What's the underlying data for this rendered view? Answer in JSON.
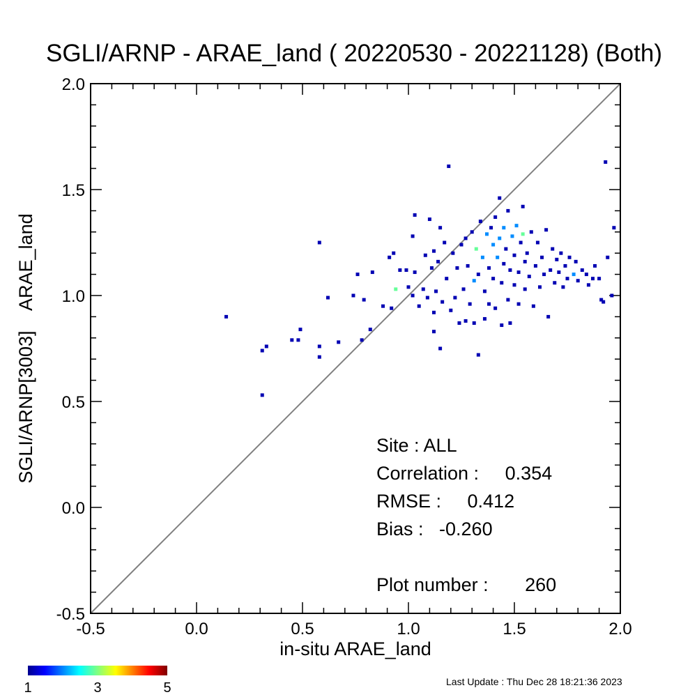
{
  "chart_data": {
    "type": "scatter",
    "title": "SGLI/ARNP - ARAE_land ( 20220530 - 20221128) (Both)",
    "xlabel": "in-situ ARAE_land",
    "ylabel": "SGLI/ARNP[3003]    ARAE_land",
    "xlim": [
      -0.5,
      2.0
    ],
    "ylim": [
      -0.5,
      2.0
    ],
    "x_ticks": [
      "-0.5",
      "0.0",
      "0.5",
      "1.0",
      "1.5",
      "2.0"
    ],
    "y_ticks": [
      "-0.5",
      "0.0",
      "0.5",
      "1.0",
      "1.5",
      "2.0"
    ],
    "reference_line": "1:1",
    "colorbar": {
      "min": 1,
      "max": 5,
      "labels": [
        "1",
        "3",
        "5"
      ]
    },
    "points": [
      [
        0.14,
        0.9,
        1
      ],
      [
        0.31,
        0.74,
        1
      ],
      [
        0.33,
        0.76,
        1
      ],
      [
        0.31,
        0.53,
        1
      ],
      [
        0.45,
        0.79,
        1
      ],
      [
        0.48,
        0.79,
        1
      ],
      [
        0.49,
        0.84,
        1
      ],
      [
        0.58,
        1.25,
        1
      ],
      [
        0.58,
        0.76,
        1
      ],
      [
        0.58,
        0.71,
        1
      ],
      [
        0.62,
        0.99,
        1
      ],
      [
        0.67,
        0.78,
        1
      ],
      [
        0.74,
        1.0,
        1
      ],
      [
        0.76,
        1.1,
        1
      ],
      [
        0.78,
        0.79,
        1
      ],
      [
        0.79,
        0.98,
        1
      ],
      [
        0.82,
        0.84,
        1
      ],
      [
        0.83,
        1.11,
        1
      ],
      [
        0.88,
        0.95,
        1
      ],
      [
        0.91,
        1.18,
        1
      ],
      [
        0.92,
        0.94,
        1
      ],
      [
        0.93,
        1.2,
        1
      ],
      [
        0.94,
        1.03,
        3
      ],
      [
        0.96,
        1.12,
        1
      ],
      [
        0.99,
        1.12,
        1
      ],
      [
        1.0,
        1.04,
        1
      ],
      [
        1.02,
        1.0,
        1
      ],
      [
        1.02,
        1.28,
        1
      ],
      [
        1.03,
        1.38,
        1
      ],
      [
        1.03,
        1.11,
        1
      ],
      [
        1.05,
        0.95,
        1
      ],
      [
        1.07,
        1.03,
        1
      ],
      [
        1.08,
        1.19,
        1
      ],
      [
        1.09,
        0.99,
        1
      ],
      [
        1.1,
        1.36,
        1
      ],
      [
        1.11,
        1.13,
        1
      ],
      [
        1.12,
        1.21,
        1
      ],
      [
        1.12,
        0.92,
        1
      ],
      [
        1.12,
        0.83,
        1
      ],
      [
        1.13,
        1.02,
        1
      ],
      [
        1.14,
        1.16,
        1
      ],
      [
        1.15,
        0.75,
        1
      ],
      [
        1.15,
        1.32,
        1
      ],
      [
        1.16,
        0.97,
        1
      ],
      [
        1.17,
        1.25,
        1
      ],
      [
        1.18,
        1.08,
        1
      ],
      [
        1.19,
        1.61,
        1
      ],
      [
        1.2,
        0.93,
        1
      ],
      [
        1.21,
        1.2,
        1
      ],
      [
        1.22,
        0.99,
        1
      ],
      [
        1.23,
        1.13,
        1
      ],
      [
        1.24,
        0.87,
        1
      ],
      [
        1.25,
        1.24,
        1
      ],
      [
        1.26,
        1.03,
        1
      ],
      [
        1.27,
        1.27,
        1
      ],
      [
        1.27,
        0.88,
        1
      ],
      [
        1.28,
        1.14,
        1
      ],
      [
        1.29,
        0.96,
        1
      ],
      [
        1.3,
        1.3,
        1
      ],
      [
        1.31,
        0.87,
        1
      ],
      [
        1.31,
        1.07,
        2
      ],
      [
        1.32,
        1.22,
        3
      ],
      [
        1.33,
        1.1,
        1
      ],
      [
        1.33,
        0.72,
        1
      ],
      [
        1.34,
        1.35,
        1
      ],
      [
        1.35,
        1.18,
        2
      ],
      [
        1.36,
        1.02,
        1
      ],
      [
        1.36,
        0.89,
        1
      ],
      [
        1.37,
        1.29,
        2
      ],
      [
        1.38,
        1.13,
        1
      ],
      [
        1.38,
        0.96,
        1
      ],
      [
        1.39,
        1.32,
        1
      ],
      [
        1.4,
        1.24,
        2
      ],
      [
        1.4,
        1.08,
        1
      ],
      [
        1.41,
        1.37,
        1
      ],
      [
        1.41,
        0.94,
        1
      ],
      [
        1.42,
        1.18,
        2
      ],
      [
        1.43,
        1.46,
        1
      ],
      [
        1.43,
        1.27,
        2
      ],
      [
        1.44,
        1.06,
        1
      ],
      [
        1.44,
        0.86,
        1
      ],
      [
        1.45,
        1.32,
        2
      ],
      [
        1.45,
        1.15,
        1
      ],
      [
        1.46,
        1.22,
        1
      ],
      [
        1.47,
        1.4,
        1
      ],
      [
        1.47,
        0.98,
        1
      ],
      [
        1.48,
        1.12,
        1
      ],
      [
        1.48,
        0.87,
        1
      ],
      [
        1.49,
        1.28,
        2
      ],
      [
        1.5,
        1.19,
        1
      ],
      [
        1.5,
        1.05,
        1
      ],
      [
        1.51,
        1.33,
        2
      ],
      [
        1.52,
        1.11,
        1
      ],
      [
        1.52,
        0.96,
        1
      ],
      [
        1.53,
        1.25,
        1
      ],
      [
        1.54,
        1.29,
        3
      ],
      [
        1.54,
        1.42,
        1
      ],
      [
        1.55,
        1.16,
        1
      ],
      [
        1.55,
        1.03,
        1
      ],
      [
        1.56,
        1.2,
        1
      ],
      [
        1.57,
        1.09,
        1
      ],
      [
        1.58,
        1.3,
        1
      ],
      [
        1.59,
        0.95,
        1
      ],
      [
        1.6,
        1.14,
        1
      ],
      [
        1.61,
        1.25,
        1
      ],
      [
        1.62,
        1.04,
        1
      ],
      [
        1.63,
        1.18,
        1
      ],
      [
        1.64,
        1.1,
        1
      ],
      [
        1.65,
        1.31,
        1
      ],
      [
        1.66,
        0.9,
        1
      ],
      [
        1.67,
        1.12,
        1
      ],
      [
        1.68,
        1.22,
        1
      ],
      [
        1.69,
        1.06,
        1
      ],
      [
        1.7,
        1.17,
        1
      ],
      [
        1.71,
        1.11,
        1
      ],
      [
        1.72,
        1.2,
        1
      ],
      [
        1.73,
        1.04,
        1
      ],
      [
        1.74,
        1.14,
        1
      ],
      [
        1.75,
        1.08,
        1
      ],
      [
        1.76,
        1.18,
        1
      ],
      [
        1.78,
        1.1,
        2
      ],
      [
        1.79,
        1.16,
        1
      ],
      [
        1.8,
        1.07,
        1
      ],
      [
        1.82,
        1.12,
        1
      ],
      [
        1.84,
        1.1,
        1
      ],
      [
        1.85,
        1.05,
        1
      ],
      [
        1.87,
        1.08,
        1
      ],
      [
        1.88,
        1.14,
        1
      ],
      [
        1.9,
        1.08,
        1
      ],
      [
        1.91,
        0.98,
        1
      ],
      [
        1.92,
        0.97,
        1
      ],
      [
        1.93,
        1.63,
        1
      ],
      [
        1.94,
        1.18,
        1
      ],
      [
        1.96,
        1.0,
        1
      ],
      [
        1.97,
        1.32,
        1
      ]
    ]
  },
  "stats": {
    "site": "Site : ALL",
    "correlation": "Correlation :     0.354",
    "rmse": "RMSE :     0.412",
    "bias": "Bias :   -0.260",
    "plot_number": "Plot number :       260"
  },
  "footer": {
    "last_update": "Last Update : Thu Dec 28 18:21:36 2023"
  }
}
